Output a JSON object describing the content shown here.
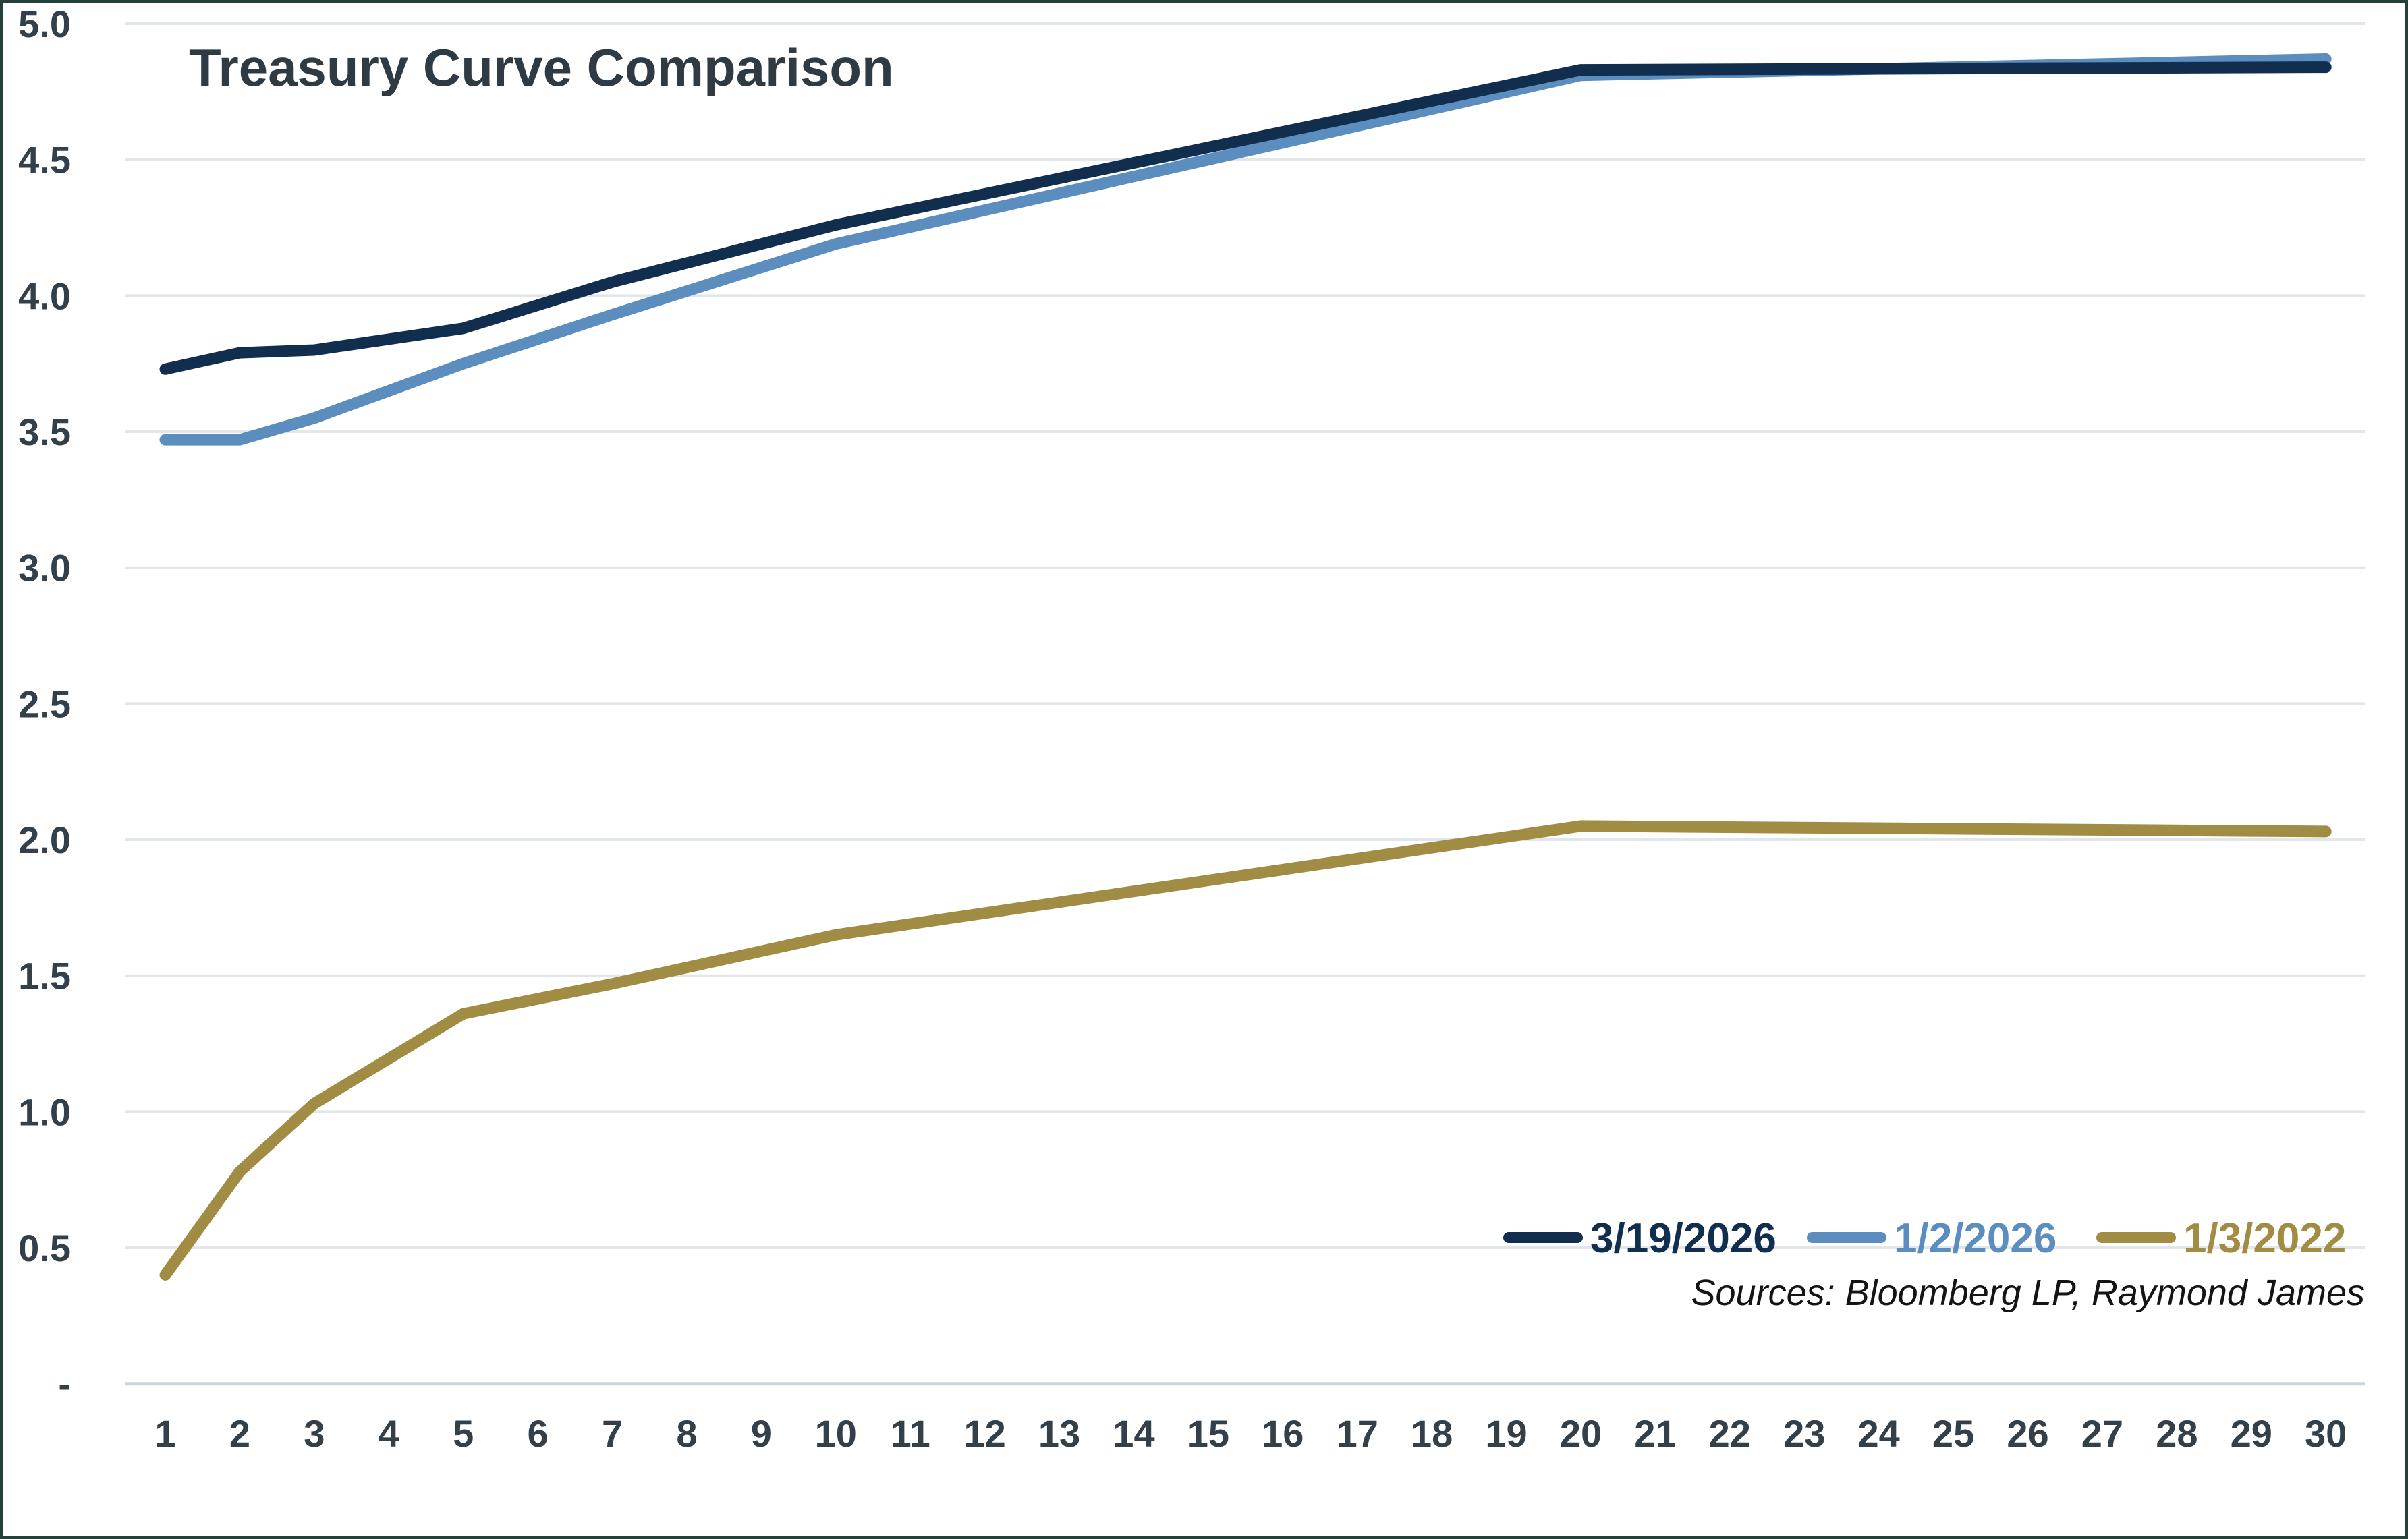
{
  "chart_data": {
    "type": "line",
    "title": "Treasury Curve Comparison",
    "source_note": "Sources: Bloomberg LP, Raymond James",
    "x": [
      1,
      2,
      3,
      5,
      7,
      10,
      20,
      30
    ],
    "series": [
      {
        "name": "3/19/2026",
        "color": "#112e4e",
        "values": [
          3.73,
          3.79,
          3.8,
          3.88,
          4.05,
          4.26,
          4.83,
          4.84
        ]
      },
      {
        "name": "1/2/2026",
        "color": "#5c8dbf",
        "values": [
          3.47,
          3.47,
          3.55,
          3.75,
          3.93,
          4.19,
          4.81,
          4.87
        ]
      },
      {
        "name": "1/3/2022",
        "color": "#a18c43",
        "values": [
          0.4,
          0.78,
          1.03,
          1.36,
          1.47,
          1.65,
          2.05,
          2.03
        ]
      }
    ],
    "x_axis": {
      "lim": [
        1,
        30
      ],
      "ticks": [
        1,
        2,
        3,
        4,
        5,
        6,
        7,
        8,
        9,
        10,
        11,
        12,
        13,
        14,
        15,
        16,
        17,
        18,
        19,
        20,
        21,
        22,
        23,
        24,
        25,
        26,
        27,
        28,
        29,
        30
      ]
    },
    "y_axis": {
      "lim": [
        0,
        5
      ],
      "ticks": [
        {
          "label": "5.0",
          "value": 5.0
        },
        {
          "label": "4.5",
          "value": 4.5
        },
        {
          "label": "4.0",
          "value": 4.0
        },
        {
          "label": "3.5",
          "value": 3.5
        },
        {
          "label": "3.0",
          "value": 3.0
        },
        {
          "label": "2.5",
          "value": 2.5
        },
        {
          "label": "2.0",
          "value": 2.0
        },
        {
          "label": "1.5",
          "value": 1.5
        },
        {
          "label": "1.0",
          "value": 1.0
        },
        {
          "label": "0.5",
          "value": 0.5
        },
        {
          "label": "-",
          "value": 0.0
        }
      ]
    },
    "grid": true,
    "legend_position": "bottom-right"
  },
  "colors": {
    "background": "#ffffff",
    "gridline": "#e0e6ea",
    "zero_line": "#ccd5da",
    "axis_text": "#333f49",
    "title_text": "#2e3a44",
    "source_text": "#141414",
    "border": "#24403a"
  }
}
